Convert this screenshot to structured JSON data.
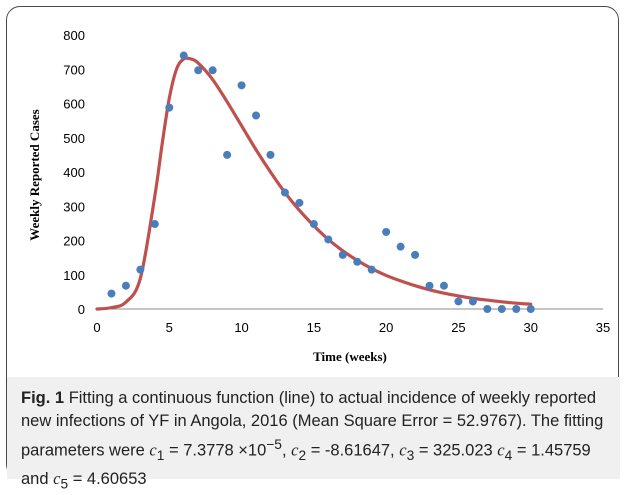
{
  "chart_data": {
    "type": "scatter",
    "title": "",
    "xlabel": "Time (weeks)",
    "ylabel": "Weekly Reported Cases",
    "xlim": [
      0,
      35
    ],
    "ylim": [
      0,
      800
    ],
    "xticks": [
      0,
      5,
      10,
      15,
      20,
      25,
      30,
      35
    ],
    "yticks": [
      0,
      100,
      200,
      300,
      400,
      500,
      600,
      700,
      800
    ],
    "grid": false,
    "legend": "none",
    "series": [
      {
        "kind": "scatter",
        "color": "#4a7ebb",
        "x": [
          1,
          2,
          3,
          4,
          5,
          6,
          7,
          8,
          9,
          10,
          11,
          12,
          13,
          14,
          15,
          16,
          17,
          18,
          19,
          20,
          21,
          22,
          23,
          24,
          25,
          26,
          27,
          28,
          29,
          30
        ],
        "y": [
          45,
          68,
          115,
          248,
          588,
          740,
          697,
          697,
          450,
          653,
          565,
          450,
          340,
          310,
          248,
          203,
          158,
          138,
          115,
          225,
          182,
          158,
          68,
          68,
          22,
          22,
          0,
          0,
          0,
          0
        ]
      },
      {
        "kind": "line",
        "color": "#c0504d",
        "x": [
          0,
          1,
          2,
          3,
          4,
          4.5,
          5,
          5.5,
          6,
          6.5,
          7,
          8,
          9,
          10,
          11,
          12,
          13,
          14,
          15,
          16,
          17,
          18,
          19,
          20,
          21,
          22,
          23,
          24,
          25,
          26,
          27,
          28,
          29,
          30
        ],
        "y": [
          0,
          4,
          20,
          90,
          330,
          480,
          615,
          700,
          730,
          730,
          718,
          670,
          605,
          535,
          465,
          400,
          340,
          288,
          243,
          203,
          170,
          142,
          118,
          98,
          82,
          68,
          56,
          46,
          38,
          31,
          26,
          21,
          17,
          14
        ]
      }
    ]
  },
  "caption": {
    "fig_label": "Fig. 1",
    "text": "Fitting a continuous function (line) to actual incidence of weekly reported new infections of YF in Angola, 2016 (Mean Square Error = 52.9767). The fitting parameters were",
    "c1_sym": "c",
    "c1_sub": "1",
    "c1_val": "= 7.3778 ×10",
    "c1_exp": "−5",
    "c2_sym": "c",
    "c2_sub": "2",
    "c2_val": "= -8.61647,",
    "c3_sym": "c",
    "c3_sub": "3",
    "c3_val": "= 325.023",
    "c4_sym": "c",
    "c4_sub": "4",
    "c4_val": "= 1.45759 and",
    "c5_sym": "c",
    "c5_sub": "5",
    "c5_val": "= 4.60653"
  }
}
